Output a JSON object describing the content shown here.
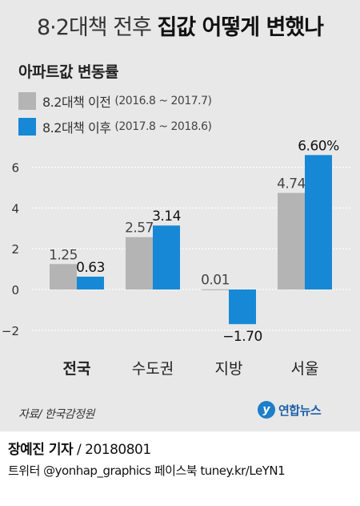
{
  "title": {
    "part1": "8·2대책 전후 ",
    "part2": "집값 어떻게 변했나"
  },
  "colors": {
    "before": "#b4b4b4",
    "after": "#1688d6",
    "background": "#e8e8e8"
  },
  "legend": [
    {
      "label": "8.2대책 이전",
      "period": "(2016.8 ~ 2017.7)"
    },
    {
      "label": "8.2대책 이후",
      "period": "(2017.8 ~ 2018.6)"
    }
  ],
  "chart_data": {
    "type": "bar",
    "title": "아파트값 변동률",
    "categories": [
      "전국",
      "수도권",
      "지방",
      "서울"
    ],
    "series": [
      {
        "name": "8.2대책 이전",
        "values": [
          1.25,
          2.57,
          0.01,
          4.74
        ],
        "labels": [
          "1.25",
          "2.57",
          "0.01",
          "4.74"
        ]
      },
      {
        "name": "8.2대책 이후",
        "values": [
          0.63,
          3.14,
          -1.7,
          6.6
        ],
        "labels": [
          "0.63",
          "3.14",
          "−1.70",
          "6.60%"
        ]
      }
    ],
    "yticks": [
      -2,
      0,
      2,
      4,
      6
    ],
    "ytick_labels": [
      "−2",
      "0",
      "2",
      "4",
      "6"
    ],
    "ylim": [
      -2.2,
      6.8
    ],
    "grid": true,
    "bold_category": "전국",
    "legend_position": "top-left"
  },
  "source": "자료/ 한국감정원",
  "logo": {
    "text": "연합뉴스",
    "mark": "y"
  },
  "credit": {
    "name": "장예진 기자",
    "date": " / 20180801"
  },
  "social": "트위터 @yonhap_graphics  페이스북 tuney.kr/LeYN1"
}
